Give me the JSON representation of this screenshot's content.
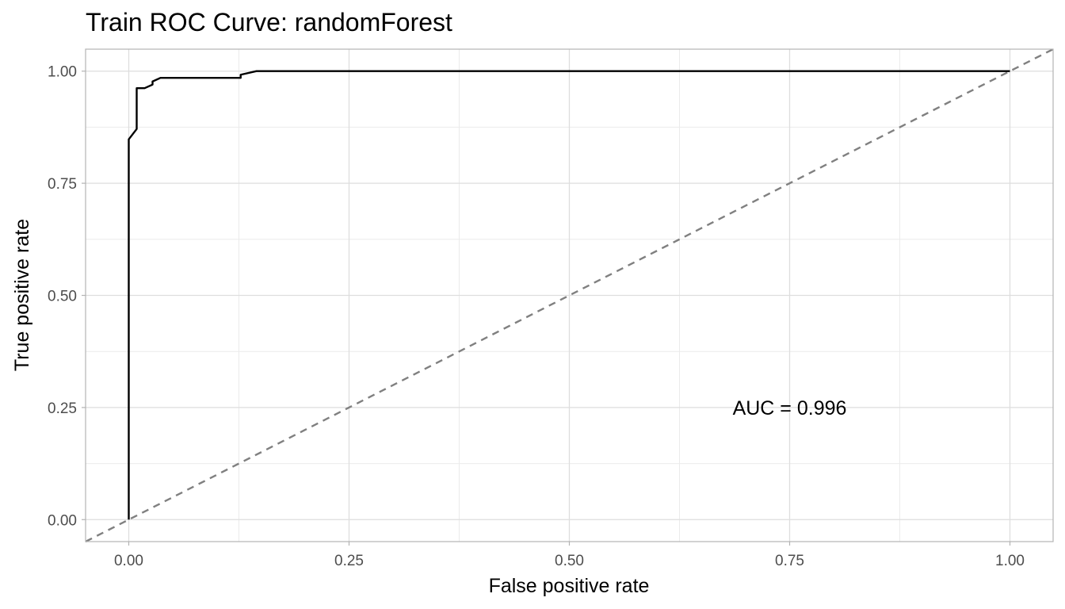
{
  "chart_data": {
    "type": "line",
    "title": "Train ROC Curve: randomForest",
    "xlabel": "False positive rate",
    "ylabel": "True positive rate",
    "xlim": [
      -0.049,
      1.049
    ],
    "ylim": [
      -0.049,
      1.049
    ],
    "x_ticks": [
      "0.00",
      "0.25",
      "0.50",
      "0.75",
      "1.00"
    ],
    "y_ticks": [
      "0.00",
      "0.25",
      "0.50",
      "0.75",
      "1.00"
    ],
    "grid": true,
    "annotation": "AUC = 0.996",
    "annotation_position": [
      0.75,
      0.25
    ],
    "series": [
      {
        "x": [
          0,
          0,
          0.009,
          0.009,
          0.018,
          0.027,
          0.027,
          0.036,
          0.045,
          0.127,
          0.127,
          0.145,
          1.0
        ],
        "y": [
          0,
          0.848,
          0.871,
          0.962,
          0.962,
          0.97,
          0.977,
          0.985,
          0.985,
          0.985,
          0.992,
          1.0,
          1.0
        ],
        "color": "#000000",
        "style": "solid"
      },
      {
        "x": [
          -0.049,
          1.049
        ],
        "y": [
          -0.049,
          1.049
        ],
        "color": "#808080",
        "style": "dashed"
      }
    ]
  }
}
